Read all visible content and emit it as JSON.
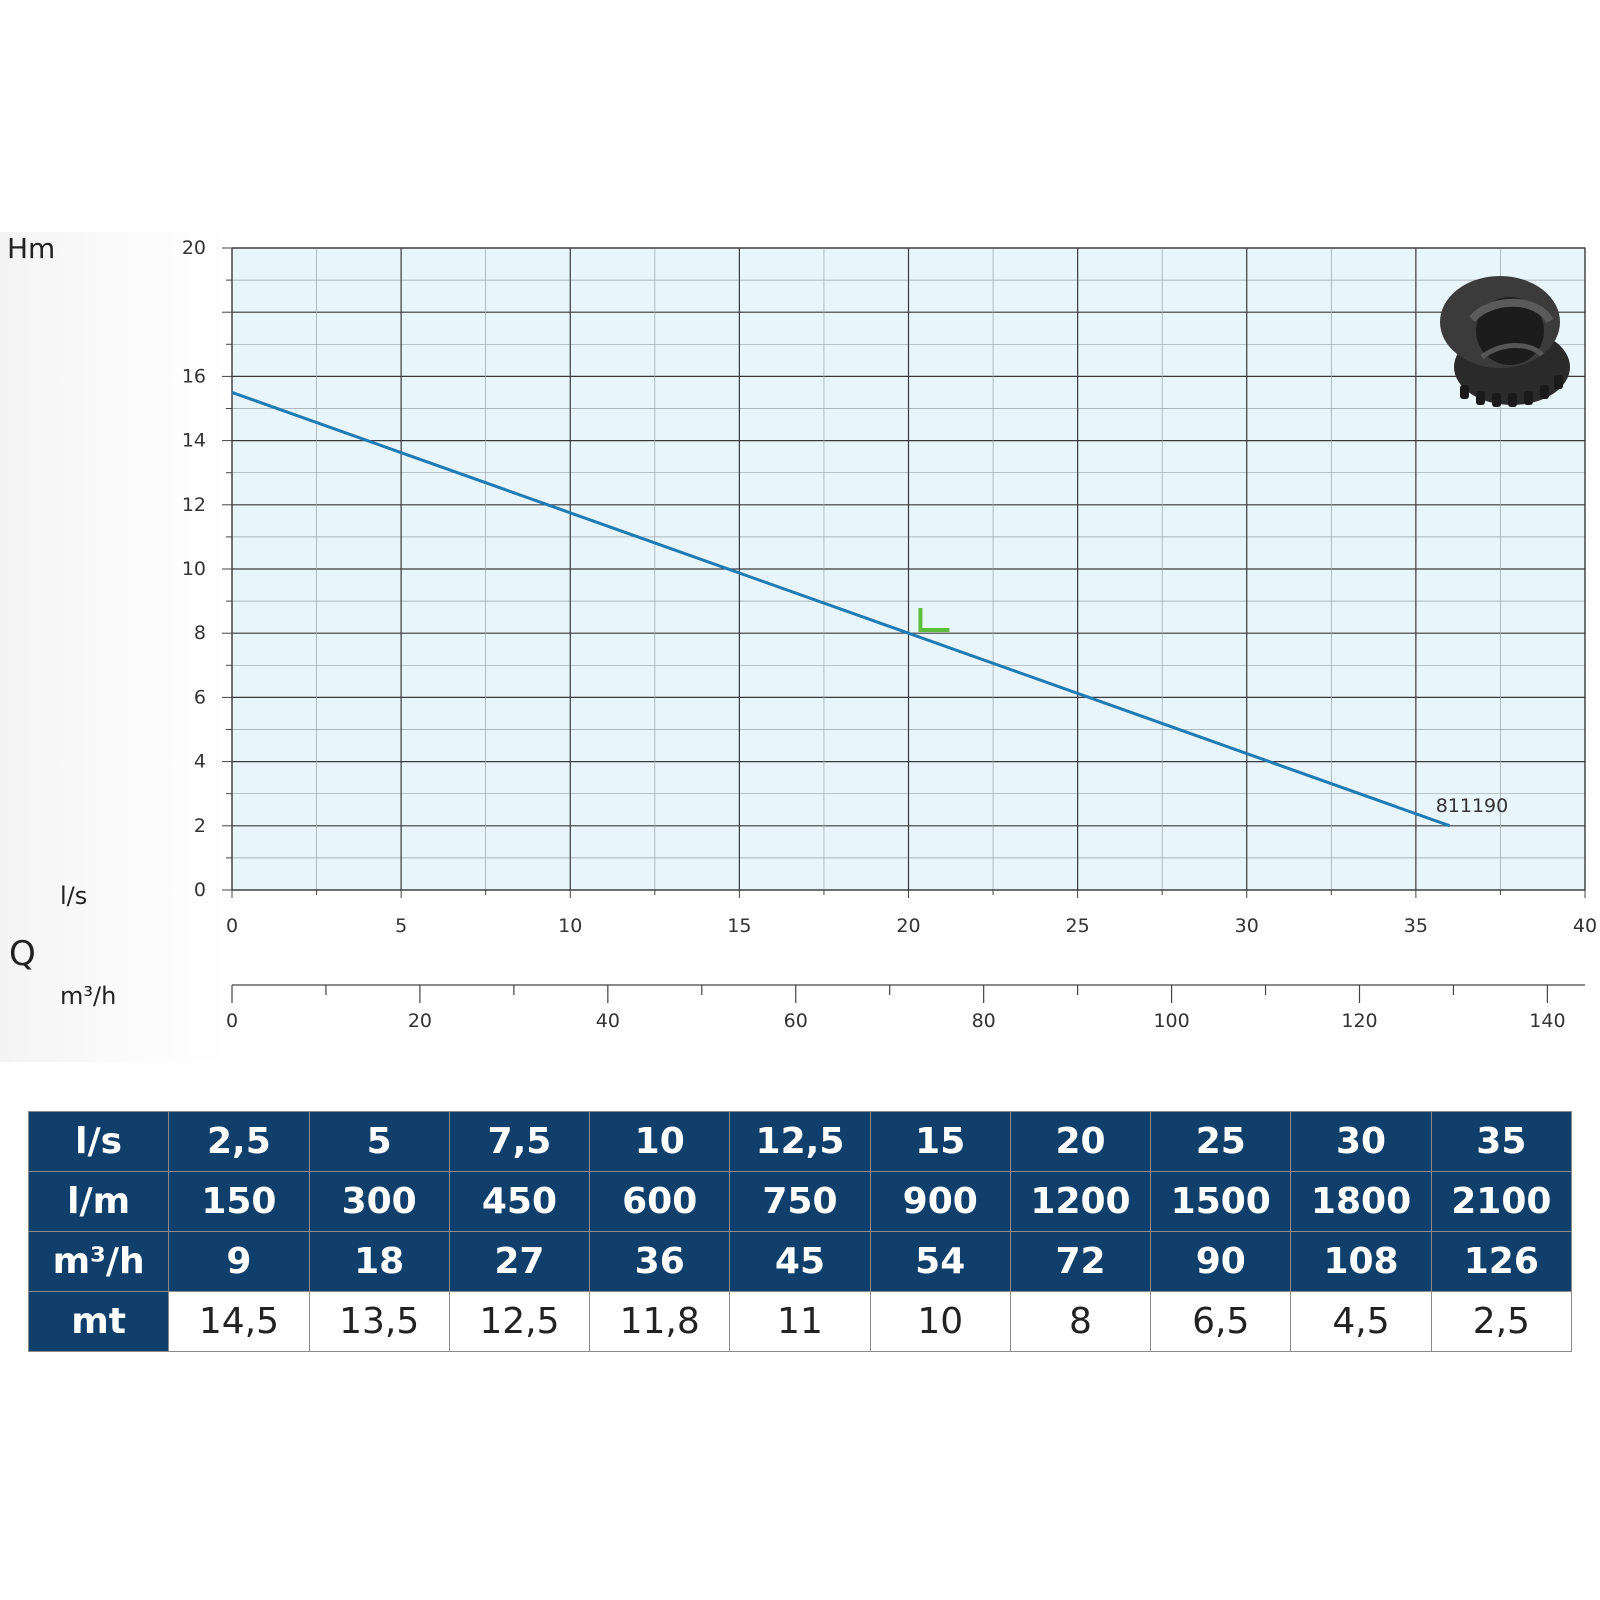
{
  "chart_data": {
    "type": "line",
    "ylabel": "Hm",
    "xlabel": "Q",
    "x_units_primary": "l/s",
    "x_units_secondary": "m³/h",
    "xlim": [
      0,
      40
    ],
    "ylim": [
      0,
      20
    ],
    "x_ticks": [
      "0",
      "5",
      "10",
      "15",
      "20",
      "25",
      "30",
      "35",
      "40"
    ],
    "y_ticks": [
      "0",
      "2",
      "4",
      "6",
      "8",
      "10",
      "12",
      "14",
      "16",
      "20"
    ],
    "secondary_x_ticks": [
      "0",
      "20",
      "40",
      "60",
      "80",
      "100",
      "120",
      "140"
    ],
    "secondary_xlim": [
      0,
      144
    ],
    "grid": true,
    "series": [
      {
        "name": "811190",
        "color": "#1f7bb3",
        "x": [
          0,
          36
        ],
        "y": [
          15.5,
          2.0
        ]
      }
    ],
    "marker": {
      "x": 20.5,
      "y": 8.1,
      "color": "#5cbf3a"
    }
  },
  "table": {
    "rows": [
      {
        "label": "l/s",
        "values": [
          "2,5",
          "5",
          "7,5",
          "10",
          "12,5",
          "15",
          "20",
          "25",
          "30",
          "35"
        ]
      },
      {
        "label": "l/m",
        "values": [
          "150",
          "300",
          "450",
          "600",
          "750",
          "900",
          "1200",
          "1500",
          "1800",
          "2100"
        ]
      },
      {
        "label": "m³/h",
        "values": [
          "9",
          "18",
          "27",
          "36",
          "45",
          "54",
          "72",
          "90",
          "108",
          "126"
        ]
      },
      {
        "label": "mt",
        "values": [
          "14,5",
          "13,5",
          "12,5",
          "11,8",
          "11",
          "10",
          "8",
          "6,5",
          "4,5",
          "2,5"
        ]
      }
    ]
  },
  "colors": {
    "plot_background": "#e8f5fb",
    "grid_major": "#3a3a3a",
    "grid_minor": "#9aa4aa",
    "table_header": "#103f6b"
  },
  "icon": "pump-impeller-icon"
}
